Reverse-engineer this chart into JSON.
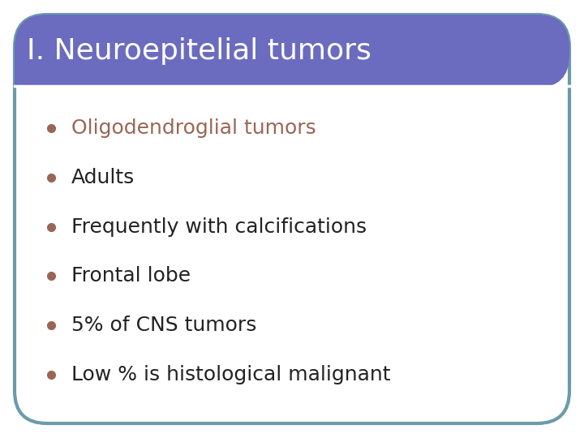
{
  "title": "I. Neuroepitelial tumors",
  "title_bg_color": "#6B6BBF",
  "title_text_color": "#FFFFFF",
  "title_fontsize": 26,
  "body_bg_color": "#FFFFFF",
  "outer_border_color": "#6B9BAA",
  "outer_bg_color": "#FFFFFF",
  "bullet_items": [
    "Oligodendroglial tumors",
    "Adults",
    "Frequently with calcifications",
    "Frontal lobe",
    "5% of CNS tumors",
    "Low % is histological malignant"
  ],
  "bullet_dot_color": "#996655",
  "bullet_text_colors": [
    "#996655",
    "#222222",
    "#222222",
    "#222222",
    "#222222",
    "#222222"
  ],
  "bullet_fontsize": 18,
  "figure_width": 7.2,
  "figure_height": 5.4,
  "dpi": 100
}
